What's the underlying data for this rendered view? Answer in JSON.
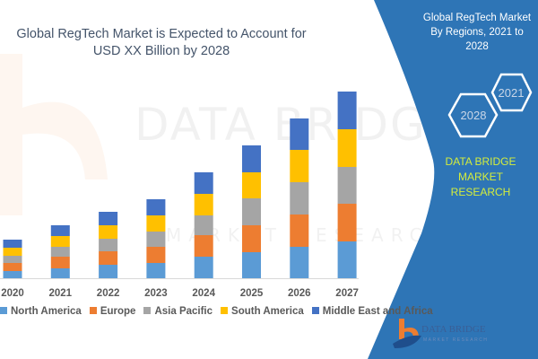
{
  "chart_data": {
    "type": "bar",
    "stacked": true,
    "title": "Global RegTech Market is Expected to Account for USD XX Billion by 2028",
    "title_lines": [
      "Global RegTech Market is Expected to Account for",
      "USD XX Billion by 2028"
    ],
    "categories": [
      "2020",
      "2021",
      "2022",
      "2023",
      "2024",
      "2025",
      "2026",
      "2027"
    ],
    "series": [
      {
        "name": "North America",
        "color": "#5b9bd5",
        "values": [
          8,
          11,
          15,
          17,
          24,
          29,
          35,
          41
        ]
      },
      {
        "name": "Europe",
        "color": "#ed7d31",
        "values": [
          9,
          13,
          15,
          18,
          24,
          30,
          36,
          42
        ]
      },
      {
        "name": "Asia Pacific",
        "color": "#a5a5a5",
        "values": [
          8,
          11,
          14,
          17,
          22,
          30,
          36,
          41
        ]
      },
      {
        "name": "South America",
        "color": "#ffc000",
        "values": [
          9,
          12,
          15,
          18,
          24,
          29,
          36,
          42
        ]
      },
      {
        "name": "Middle East and Africa",
        "color": "#4472c4",
        "values": [
          9,
          12,
          15,
          18,
          24,
          30,
          35,
          42
        ]
      }
    ],
    "yaxis_visible": false,
    "grid": false,
    "legend_position": "bottom"
  },
  "panel": {
    "title_lines": [
      "Global RegTech Market",
      "By Regions, 2021 to 2028"
    ],
    "hex_years": [
      "2021",
      "2028"
    ],
    "brand_lines": [
      "DATA BRIDGE MARKET",
      "RESEARCH"
    ],
    "color": "#2e75b6",
    "brand_color": "#d4ed3c"
  },
  "logo": {
    "text": "DATA BRIDGE",
    "subtext": "MARKET RESEARCH"
  },
  "watermark": {
    "text": "DATA BRIDGE",
    "subtext": "MARKET RESEARCH"
  }
}
